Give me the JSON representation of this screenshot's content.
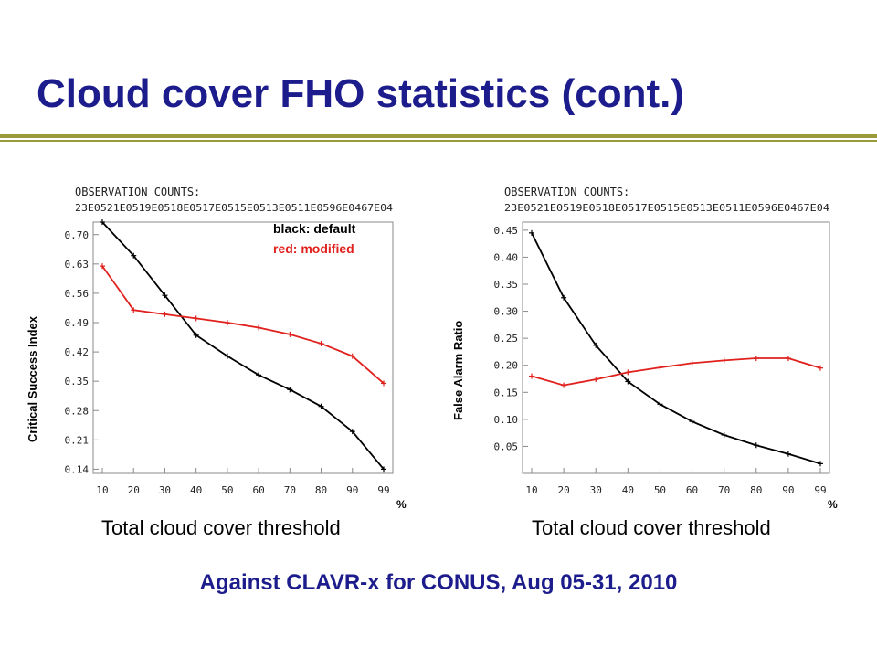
{
  "slide": {
    "title": "Cloud cover FHO statistics (cont.)",
    "subtitle": "Against CLAVR-x for CONUS, Aug 05-31, 2010",
    "legend": {
      "default_label": "black: default",
      "modified_label": "red: modified",
      "default_color": "#000000",
      "modified_color": "#e0201c"
    },
    "title_color": "#1c1c8c",
    "rule_color": "#9a9a3a"
  },
  "chart_data": [
    {
      "type": "line",
      "title": "OBSERVATION COUNTS:",
      "counts_text": "23E0521E0519E0518E0517E0515E0513E0511E0596E0467E04",
      "xlabel": "Total cloud cover threshold",
      "x_unit": "%",
      "ylabel": "Critical Success Index",
      "categories": [
        "10",
        "20",
        "30",
        "40",
        "50",
        "60",
        "70",
        "80",
        "90",
        "99"
      ],
      "yticks": [
        "0.14",
        "0.21",
        "0.28",
        "0.35",
        "0.42",
        "0.49",
        "0.56",
        "0.63",
        "0.70"
      ],
      "ylim": [
        0.13,
        0.73
      ],
      "series": [
        {
          "color": "#000000",
          "values": [
            0.73,
            0.65,
            0.555,
            0.46,
            0.41,
            0.365,
            0.33,
            0.29,
            0.23,
            0.14
          ]
        },
        {
          "color": "#e0201c",
          "values": [
            0.625,
            0.52,
            0.51,
            0.5,
            0.49,
            0.478,
            0.462,
            0.44,
            0.41,
            0.345
          ]
        }
      ]
    },
    {
      "type": "line",
      "title": "OBSERVATION COUNTS:",
      "counts_text": "23E0521E0519E0518E0517E0515E0513E0511E0596E0467E04",
      "xlabel": "Total cloud cover threshold",
      "x_unit": "%",
      "ylabel": "False Alarm Ratio",
      "categories": [
        "10",
        "20",
        "30",
        "40",
        "50",
        "60",
        "70",
        "80",
        "90",
        "99"
      ],
      "yticks": [
        "0.05",
        "0.10",
        "0.15",
        "0.20",
        "0.25",
        "0.30",
        "0.35",
        "0.40",
        "0.45"
      ],
      "ylim": [
        0.0,
        0.465
      ],
      "series": [
        {
          "color": "#000000",
          "values": [
            0.445,
            0.325,
            0.237,
            0.17,
            0.128,
            0.096,
            0.071,
            0.052,
            0.036,
            0.018
          ]
        },
        {
          "color": "#e0201c",
          "values": [
            0.18,
            0.163,
            0.174,
            0.187,
            0.196,
            0.204,
            0.209,
            0.213,
            0.213,
            0.195
          ]
        }
      ]
    }
  ]
}
